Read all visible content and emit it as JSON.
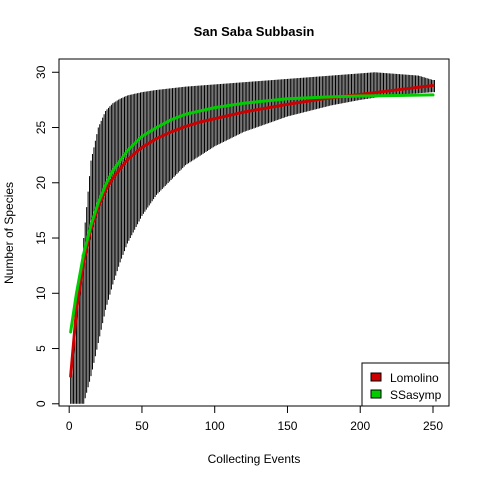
{
  "chart_data": {
    "type": "line",
    "title": "San Saba Subbasin",
    "xlabel": "Collecting Events",
    "ylabel": "Number of Species",
    "xlim": [
      -7,
      261
    ],
    "ylim": [
      -0.2,
      31.2
    ],
    "xticks": [
      0,
      50,
      100,
      150,
      200,
      250
    ],
    "yticks": [
      0,
      5,
      10,
      15,
      20,
      25,
      30
    ],
    "grid": false,
    "legend_position": "bottom-right",
    "n_events": 251,
    "interval_band": {
      "x": [
        1,
        5,
        10,
        15,
        20,
        25,
        30,
        35,
        40,
        50,
        60,
        80,
        100,
        120,
        150,
        180,
        200,
        210,
        220,
        240,
        250
      ],
      "upper": [
        3,
        7.5,
        15,
        22,
        25,
        26.5,
        27.2,
        27.6,
        27.9,
        28.2,
        28.4,
        28.7,
        28.9,
        29.1,
        29.4,
        29.7,
        29.9,
        30.0,
        29.9,
        29.7,
        29.3
      ],
      "lower": [
        0,
        0,
        0,
        2.5,
        5.5,
        8.5,
        10.8,
        12.8,
        14.5,
        17,
        18.9,
        21.6,
        23.3,
        24.6,
        26,
        27,
        27.5,
        27.7,
        27.9,
        28.1,
        28.2
      ]
    },
    "series": [
      {
        "name": "Lomolino",
        "color": "#cc0000",
        "x": [
          1,
          5,
          10,
          15,
          20,
          25,
          30,
          40,
          50,
          60,
          70,
          80,
          90,
          100,
          120,
          150,
          175,
          200,
          225,
          250
        ],
        "values": [
          2.5,
          8.5,
          12.8,
          15.8,
          17.8,
          19.3,
          20.4,
          22.1,
          23.2,
          24.0,
          24.6,
          25.1,
          25.5,
          25.8,
          26.4,
          27.1,
          27.6,
          28.0,
          28.4,
          28.8
        ]
      },
      {
        "name": "SSasymp",
        "color": "#00cc00",
        "x": [
          1,
          5,
          10,
          15,
          20,
          25,
          30,
          40,
          50,
          60,
          70,
          80,
          90,
          100,
          120,
          150,
          175,
          200,
          225,
          250
        ],
        "values": [
          6.5,
          10.0,
          13.6,
          16.2,
          18.2,
          19.8,
          21.1,
          22.9,
          24.2,
          25.0,
          25.7,
          26.2,
          26.5,
          26.8,
          27.2,
          27.6,
          27.75,
          27.85,
          27.9,
          27.95
        ]
      }
    ],
    "legend": [
      {
        "label": "Lomolino",
        "color": "#cc0000"
      },
      {
        "label": "SSasymp",
        "color": "#00cc00"
      }
    ]
  }
}
